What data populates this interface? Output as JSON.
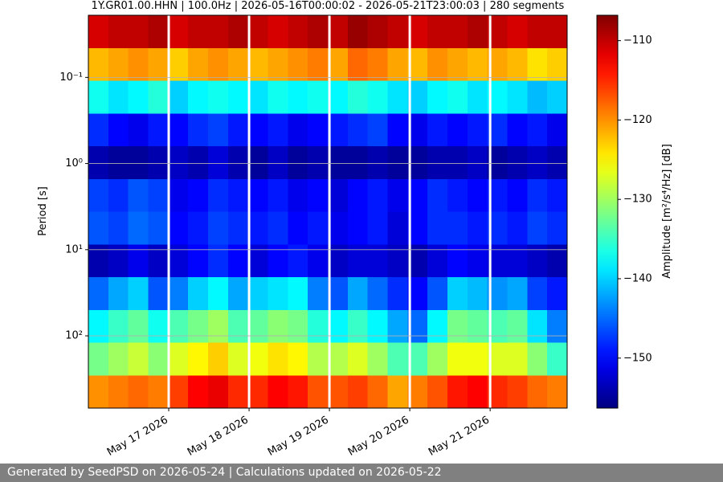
{
  "chart_data": {
    "type": "heatmap",
    "title": "1Y.GR01.00.HHN | 100.0Hz | 2026-05-16T00:00:02 - 2026-05-21T23:00:03 | 280 segments",
    "y_label": "Period [s]",
    "colorbar_label": "Amplitude [m²/s⁴/Hz] [dB]",
    "colormap": "jet",
    "clim": [
      -156.3,
      -106.8
    ],
    "cticks": [
      {
        "value": -110,
        "label": "−110"
      },
      {
        "value": -120,
        "label": "−120"
      },
      {
        "value": -130,
        "label": "−130"
      },
      {
        "value": -140,
        "label": "−140"
      },
      {
        "value": -150,
        "label": "−150"
      }
    ],
    "xlim": [
      "2026-05-16T00:00:02",
      "2026-05-21T23:00:03"
    ],
    "xticks": [
      {
        "value": "2026-05-17",
        "label": "May 17 2026"
      },
      {
        "value": "2026-05-18",
        "label": "May 18 2026"
      },
      {
        "value": "2026-05-19",
        "label": "May 19 2026"
      },
      {
        "value": "2026-05-20",
        "label": "May 20 2026"
      },
      {
        "value": "2026-05-21",
        "label": "May 21 2026"
      }
    ],
    "ylog": true,
    "y_inverted": true,
    "ylim": [
      0.019,
      690
    ],
    "yticks": [
      {
        "value": 0.1,
        "label": "10⁻¹"
      },
      {
        "value": 1,
        "label": "10⁰"
      },
      {
        "value": 10,
        "label": "10¹"
      },
      {
        "value": 100,
        "label": "10²"
      }
    ],
    "grid": true,
    "z": [
      [
        -111,
        -110,
        -110,
        -109,
        -111,
        -110,
        -110,
        -109,
        -110,
        -111,
        -110,
        -109,
        -110,
        -108,
        -109,
        -110,
        -111,
        -110,
        -110,
        -109,
        -110,
        -111,
        -110,
        -110
      ],
      [
        -122,
        -121,
        -120,
        -121,
        -123,
        -121,
        -120,
        -121,
        -122,
        -121,
        -120,
        -119,
        -121,
        -118,
        -119,
        -121,
        -122,
        -120,
        -121,
        -122,
        -121,
        -122,
        -124,
        -123
      ],
      [
        -137,
        -139,
        -138,
        -136,
        -140,
        -138,
        -137,
        -138,
        -139,
        -137,
        -138,
        -137,
        -138,
        -136,
        -137,
        -139,
        -140,
        -138,
        -137,
        -139,
        -138,
        -139,
        -141,
        -140
      ],
      [
        -148,
        -150,
        -151,
        -149,
        -150,
        -148,
        -147,
        -149,
        -150,
        -149,
        -151,
        -150,
        -149,
        -148,
        -147,
        -150,
        -151,
        -149,
        -150,
        -149,
        -148,
        -150,
        -149,
        -151
      ],
      [
        -154,
        -155,
        -155,
        -154,
        -153,
        -154,
        -152,
        -154,
        -155,
        -153,
        -155,
        -154,
        -155,
        -155,
        -154,
        -155,
        -155,
        -154,
        -154,
        -153,
        -155,
        -154,
        -153,
        -154
      ],
      [
        -147,
        -148,
        -146,
        -147,
        -151,
        -150,
        -148,
        -149,
        -150,
        -149,
        -151,
        -150,
        -152,
        -150,
        -149,
        -151,
        -150,
        -148,
        -149,
        -150,
        -149,
        -150,
        -148,
        -149
      ],
      [
        -146,
        -147,
        -145,
        -146,
        -150,
        -149,
        -147,
        -148,
        -149,
        -148,
        -150,
        -149,
        -151,
        -150,
        -149,
        -152,
        -150,
        -148,
        -148,
        -149,
        -148,
        -149,
        -147,
        -148
      ],
      [
        -154,
        -153,
        -151,
        -153,
        -152,
        -150,
        -148,
        -150,
        -152,
        -150,
        -149,
        -151,
        -153,
        -152,
        -152,
        -153,
        -154,
        -152,
        -150,
        -151,
        -152,
        -152,
        -153,
        -154
      ],
      [
        -145,
        -142,
        -140,
        -146,
        -144,
        -140,
        -138,
        -142,
        -140,
        -139,
        -138,
        -144,
        -146,
        -142,
        -145,
        -148,
        -150,
        -146,
        -140,
        -141,
        -143,
        -142,
        -147,
        -149
      ],
      [
        -138,
        -135,
        -133,
        -137,
        -134,
        -132,
        -130,
        -134,
        -133,
        -131,
        -132,
        -136,
        -138,
        -135,
        -138,
        -142,
        -145,
        -138,
        -132,
        -133,
        -134,
        -133,
        -139,
        -144
      ],
      [
        -132,
        -130,
        -128,
        -131,
        -127,
        -125,
        -123,
        -127,
        -126,
        -124,
        -125,
        -129,
        -129,
        -127,
        -130,
        -134,
        -134,
        -130,
        -126,
        -126,
        -127,
        -127,
        -131,
        -135
      ],
      [
        -120,
        -119,
        -118,
        -119,
        -116,
        -113,
        -112,
        -115,
        -115,
        -113,
        -114,
        -117,
        -117,
        -116,
        -118,
        -121,
        -119,
        -117,
        -114,
        -113,
        -115,
        -116,
        -118,
        -119
      ]
    ]
  },
  "footer": "Generated by SeedPSD on 2026-05-24 | Calculations updated on 2026-05-22"
}
